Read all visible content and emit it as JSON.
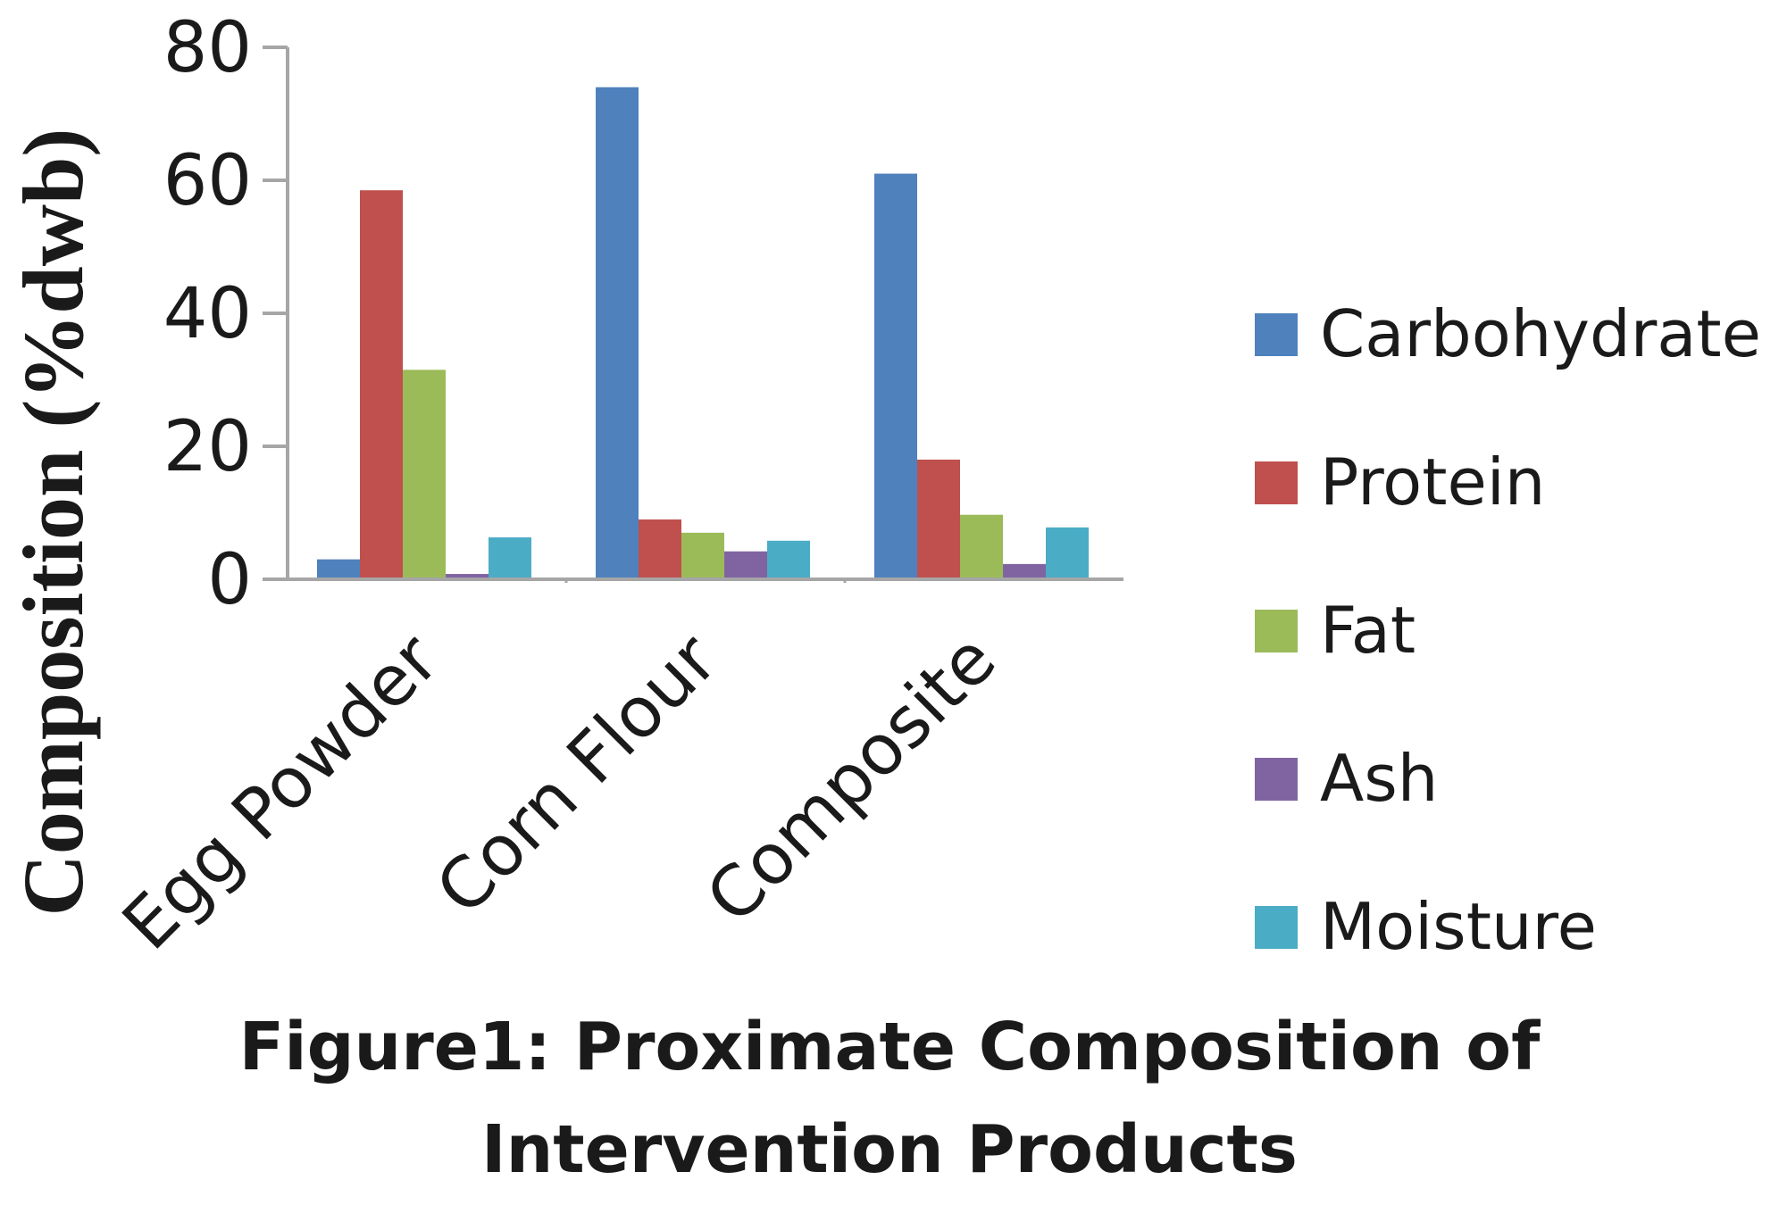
{
  "chart_data": {
    "type": "bar",
    "title": "",
    "xlabel": "",
    "ylabel": "Composition (%dwb)",
    "ylim": [
      0,
      80
    ],
    "yticks": [
      0,
      20,
      40,
      60,
      80
    ],
    "categories": [
      "Egg Powder",
      "Corn Flour",
      "Composite"
    ],
    "series": [
      {
        "name": "Carbohydrate",
        "color": "#4F81BD",
        "values": [
          3,
          74,
          61
        ]
      },
      {
        "name": "Protein",
        "color": "#C0504D",
        "values": [
          58.5,
          9,
          18
        ]
      },
      {
        "name": "Fat",
        "color": "#9BBB59",
        "values": [
          31.5,
          7,
          9.7
        ]
      },
      {
        "name": "Ash",
        "color": "#8064A2",
        "values": [
          0.8,
          4.2,
          2.3
        ]
      },
      {
        "name": "Moisture",
        "color": "#4BACC6",
        "values": [
          6.3,
          5.8,
          7.8
        ]
      }
    ],
    "legend_position": "right",
    "grid": false
  },
  "caption": {
    "line1": "Figure1: Proximate Composition of",
    "line2": "Intervention Products"
  }
}
